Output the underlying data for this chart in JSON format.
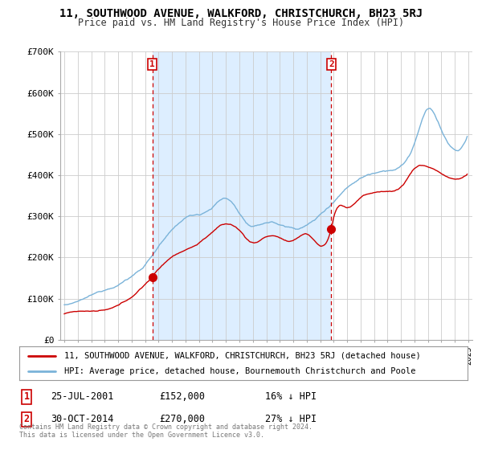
{
  "title": "11, SOUTHWOOD AVENUE, WALKFORD, CHRISTCHURCH, BH23 5RJ",
  "subtitle": "Price paid vs. HM Land Registry's House Price Index (HPI)",
  "ylim": [
    0,
    700000
  ],
  "yticks": [
    0,
    100000,
    200000,
    300000,
    400000,
    500000,
    600000,
    700000
  ],
  "ytick_labels": [
    "£0",
    "£100K",
    "£200K",
    "£300K",
    "£400K",
    "£500K",
    "£600K",
    "£700K"
  ],
  "xlim_left": 1994.7,
  "xlim_right": 2025.3,
  "sale1_x": 2001.55,
  "sale1_y": 152000,
  "sale2_x": 2014.83,
  "sale2_y": 270000,
  "line_property_color": "#cc0000",
  "line_hpi_color": "#7ab3d9",
  "vline_color": "#cc0000",
  "shade_color": "#ddeeff",
  "legend_property_label": "11, SOUTHWOOD AVENUE, WALKFORD, CHRISTCHURCH, BH23 5RJ (detached house)",
  "legend_hpi_label": "HPI: Average price, detached house, Bournemouth Christchurch and Poole",
  "table_row1": [
    "1",
    "25-JUL-2001",
    "£152,000",
    "16% ↓ HPI"
  ],
  "table_row2": [
    "2",
    "30-OCT-2014",
    "£270,000",
    "27% ↓ HPI"
  ],
  "footer": "Contains HM Land Registry data © Crown copyright and database right 2024.\nThis data is licensed under the Open Government Licence v3.0.",
  "bg": "#ffffff",
  "grid_color": "#cccccc"
}
